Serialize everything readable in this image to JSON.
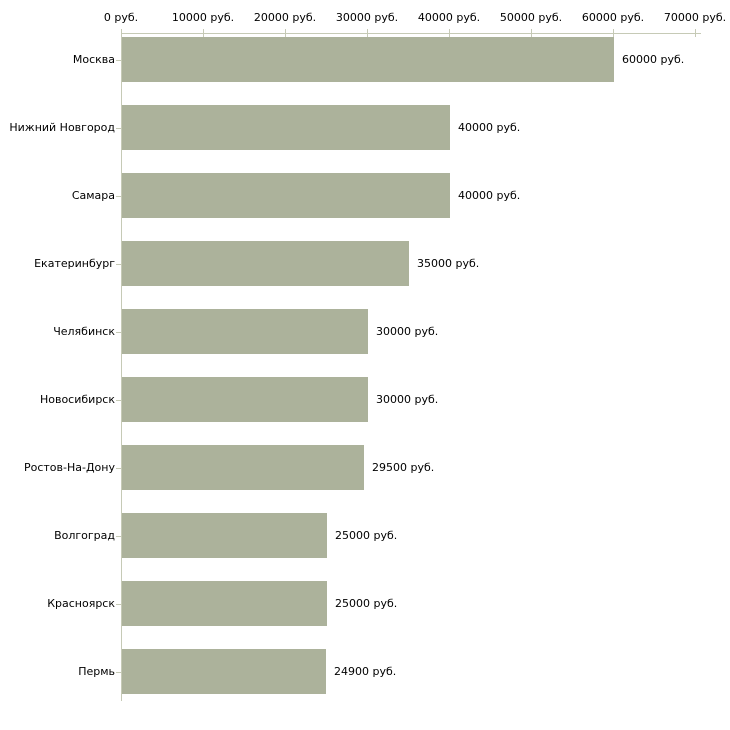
{
  "chart_data": {
    "type": "bar",
    "orientation": "horizontal",
    "title": "",
    "xlabel": "",
    "ylabel": "",
    "unit": "руб.",
    "xlim": [
      0,
      70000
    ],
    "grid": false,
    "legend": false,
    "axis_position": "top",
    "categories": [
      "Москва",
      "Нижний Новгород",
      "Самара",
      "Екатеринбург",
      "Челябинск",
      "Новосибирск",
      "Ростов-На-Дону",
      "Волгоград",
      "Красноярск",
      "Пермь"
    ],
    "values": [
      60000,
      40000,
      40000,
      35000,
      30000,
      30000,
      29500,
      25000,
      25000,
      24900
    ],
    "value_labels": [
      "60000 руб.",
      "40000 руб.",
      "40000 руб.",
      "35000 руб.",
      "30000 руб.",
      "30000 руб.",
      "29500 руб.",
      "25000 руб.",
      "25000 руб.",
      "24900 руб."
    ],
    "x_tick_values": [
      0,
      10000,
      20000,
      30000,
      40000,
      50000,
      60000,
      70000
    ],
    "x_tick_labels": [
      "0 руб.",
      "10000 руб.",
      "20000 руб.",
      "30000 руб.",
      "40000 руб.",
      "50000 руб.",
      "60000 руб.",
      "70000 руб."
    ],
    "colors": {
      "bar": "#acb29b",
      "axis": "#c6cab6",
      "text": "#000000",
      "background": "#ffffff"
    }
  }
}
